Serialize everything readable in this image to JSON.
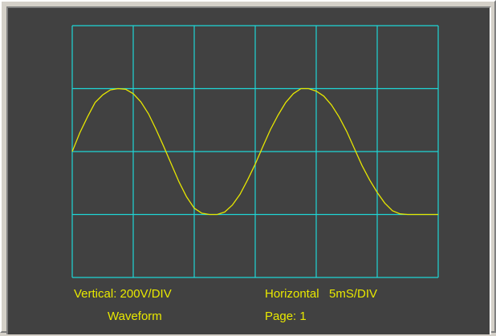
{
  "colors": {
    "panel": "#414141",
    "grid": "#1fd5d5",
    "trace": "#e6e600",
    "text": "#e8e800"
  },
  "labels": {
    "vertical": "Vertical: 200V/DIV",
    "horizontal": "Horizontal   5mS/DIV",
    "mode": "Waveform",
    "page": "Page: 1"
  },
  "chart_data": {
    "type": "line",
    "grid_divisions": {
      "x": 6,
      "y": 4
    },
    "x_unit_per_div": "5mS",
    "y_unit_per_div": "200V",
    "series": [
      {
        "x": [
          0,
          0.125,
          0.25,
          0.375,
          0.5,
          0.625,
          0.75,
          0.875,
          1,
          1.125,
          1.25,
          1.375,
          1.5,
          1.625,
          1.75,
          1.875,
          2,
          2.125,
          2.25,
          2.375,
          2.5,
          2.625,
          2.75,
          2.875,
          3,
          3.125,
          3.25,
          3.375,
          3.5,
          3.625,
          3.75,
          3.875,
          4,
          4.125,
          4.25,
          4.375,
          4.5,
          4.625,
          4.75,
          4.875,
          5,
          5.125,
          5.25,
          5.375,
          5.5,
          5.625,
          5.75,
          5.875,
          6
        ],
        "y": [
          2.0,
          2.3,
          2.55,
          2.78,
          2.9,
          2.98,
          3.0,
          2.99,
          2.92,
          2.79,
          2.6,
          2.35,
          2.08,
          1.8,
          1.52,
          1.28,
          1.1,
          1.02,
          1.0,
          1.0,
          1.04,
          1.15,
          1.32,
          1.55,
          1.8,
          2.08,
          2.35,
          2.58,
          2.78,
          2.92,
          3.0,
          3.0,
          2.96,
          2.88,
          2.74,
          2.55,
          2.32,
          2.05,
          1.78,
          1.55,
          1.35,
          1.18,
          1.06,
          1.01,
          1.0,
          1.0,
          1.0,
          1.0,
          1.0
        ]
      }
    ]
  }
}
